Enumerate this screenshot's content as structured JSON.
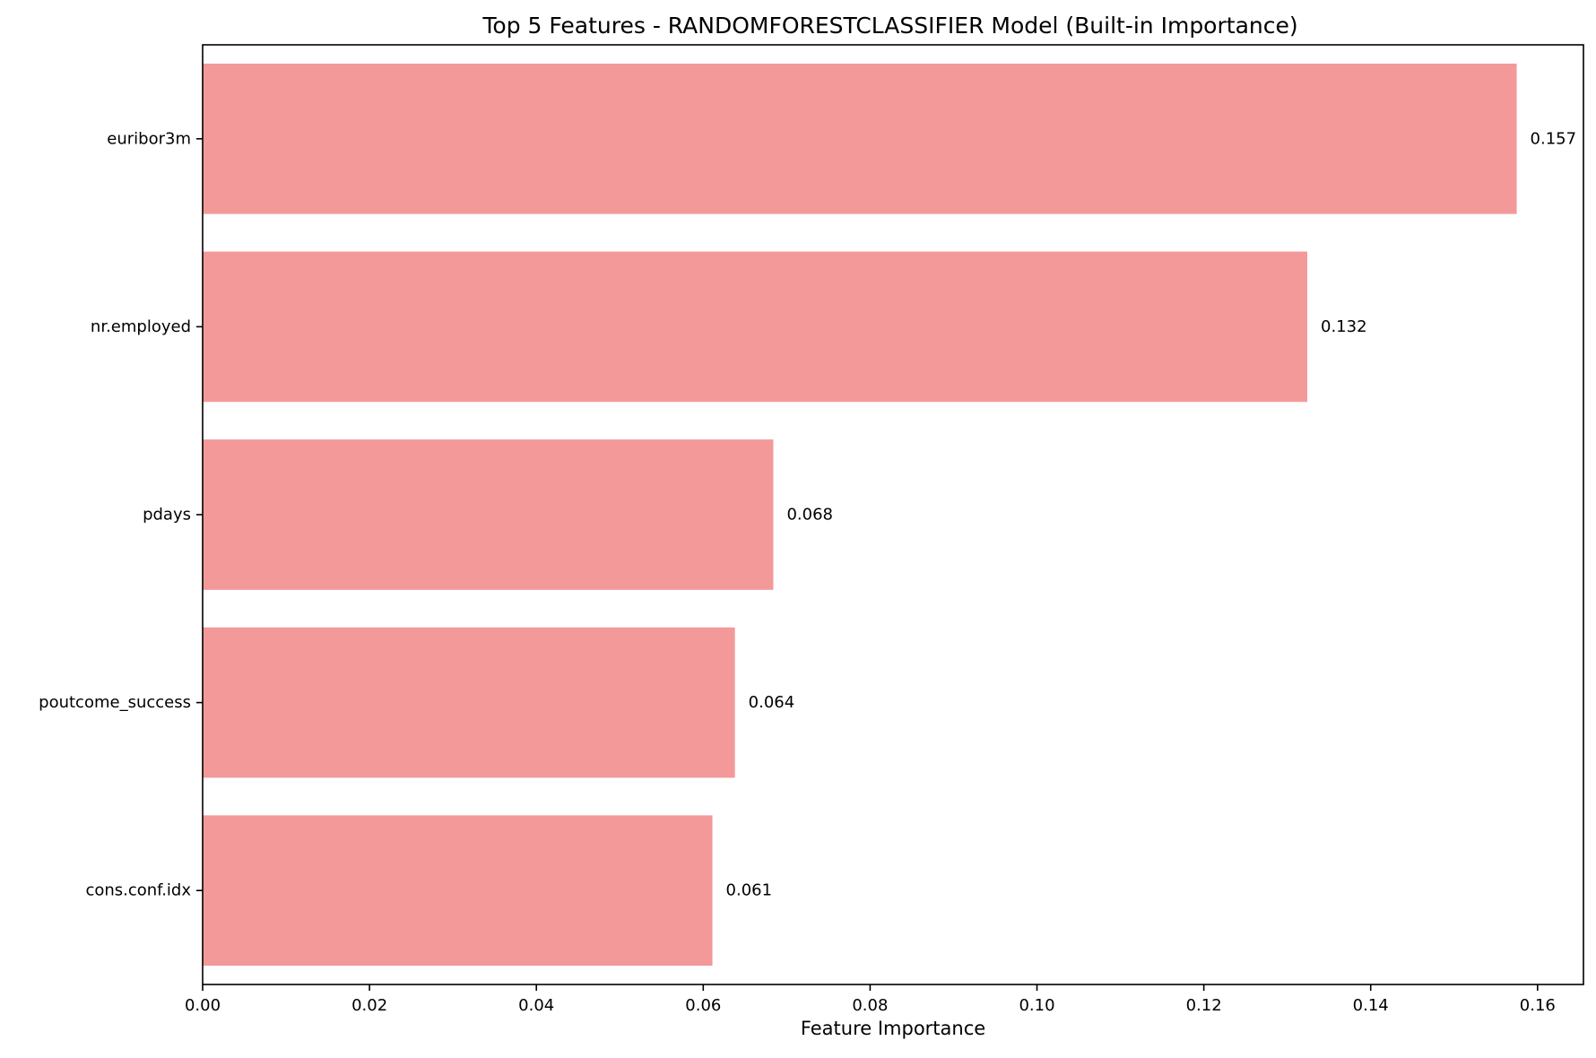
{
  "chart_data": {
    "type": "bar",
    "orientation": "horizontal",
    "title": "Top 5 Features - RANDOMFORESTCLASSIFIER Model (Built-in Importance)",
    "xlabel": "Feature Importance",
    "ylabel": "",
    "categories": [
      "euribor3m",
      "nr.employed",
      "pdays",
      "poutcome_success",
      "cons.conf.idx"
    ],
    "values": [
      0.1575,
      0.1324,
      0.0684,
      0.0638,
      0.0611
    ],
    "value_labels": [
      "0.157",
      "0.132",
      "0.068",
      "0.064",
      "0.061"
    ],
    "xlim": [
      0,
      0.1655
    ],
    "xticks": [
      0.0,
      0.02,
      0.04,
      0.06,
      0.08,
      0.1,
      0.12,
      0.14,
      0.16
    ],
    "xtick_labels": [
      "0.00",
      "0.02",
      "0.04",
      "0.06",
      "0.08",
      "0.10",
      "0.12",
      "0.14",
      "0.16"
    ],
    "grid": false,
    "legend": null,
    "bar_color": "#f08080",
    "bar_opacity": 0.8
  }
}
